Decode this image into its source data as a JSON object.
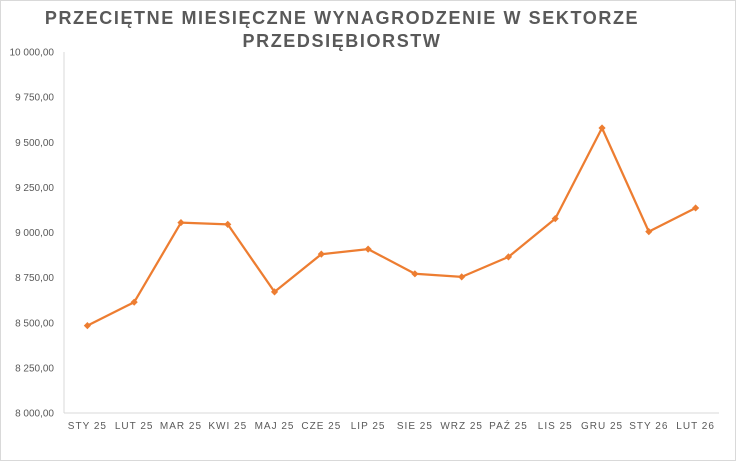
{
  "chart_data": {
    "type": "line",
    "title_lines": [
      "PRZECIĘTNE MIESIĘCZNE WYNAGRODZENIE W SEKTORZE",
      "PRZEDSIĘBIORSTW"
    ],
    "categories": [
      "STY 25",
      "LUT 25",
      "MAR 25",
      "KWI 25",
      "MAJ 25",
      "CZE 25",
      "LIP 25",
      "SIE 25",
      "WRZ 25",
      "PAŹ 25",
      "LIS 25",
      "GRU 25",
      "STY 26",
      "LUT 26"
    ],
    "series": [
      {
        "values": [
          8484,
          8614,
          9055,
          9045,
          8671,
          8880,
          8908,
          8771,
          8754,
          8865,
          9077,
          9579,
          9005,
          9136
        ]
      }
    ],
    "ylim": [
      8000,
      10000
    ],
    "y_ticks": [
      8000,
      8250,
      8500,
      8750,
      9000,
      9250,
      9500,
      9750,
      10000
    ],
    "y_tick_labels": [
      "8 000,00",
      "8 250,00",
      "8 500,00",
      "8 750,00",
      "9 000,00",
      "9 250,00",
      "9 500,00",
      "9 750,00",
      "10 000,00"
    ],
    "grid": false,
    "legend": "none",
    "colors": {
      "line": "#ed7d31",
      "axis": "#d9d9d9",
      "text": "#595959"
    }
  }
}
